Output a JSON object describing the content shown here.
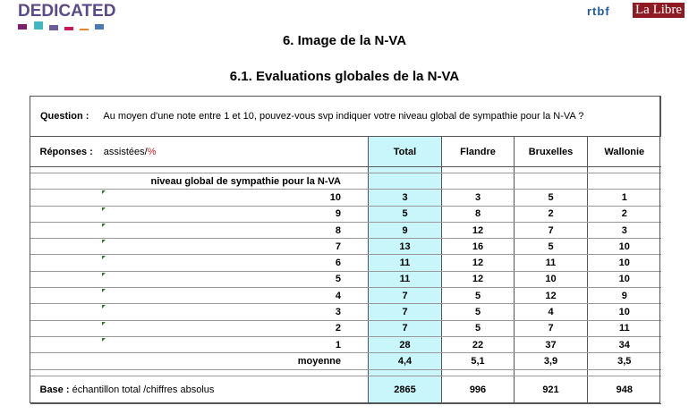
{
  "header": {
    "brand": "DEDICATED",
    "logo_rtbf": "rtbf",
    "logo_lalibre": "La Libre",
    "brand_colors": [
      "#7b1f6e",
      "#3fb8c0",
      "#6a5a9a",
      "#c8185a",
      "#e8842a",
      "#4a7ab8"
    ]
  },
  "title": "6. Image de la N-VA",
  "subtitle": "6.1. Evaluations globales de la N-VA",
  "question": {
    "label": "Question :",
    "text": "Au moyen d'une note entre 1 et 10, pouvez-vous svp indiquer votre niveau global de sympathie pour la N-VA ?"
  },
  "responses": {
    "label": "Réponses :",
    "text": "assistées/",
    "pct": "%"
  },
  "columns": [
    "Total",
    "Flandre",
    "Bruxelles",
    "Wallonie"
  ],
  "row_header": "niveau global de sympathie pour la N-VA",
  "rows": [
    {
      "label": "10",
      "values": [
        "3",
        "3",
        "5",
        "1"
      ]
    },
    {
      "label": "9",
      "values": [
        "5",
        "8",
        "2",
        "2"
      ]
    },
    {
      "label": "8",
      "values": [
        "9",
        "12",
        "7",
        "3"
      ]
    },
    {
      "label": "7",
      "values": [
        "13",
        "16",
        "5",
        "10"
      ]
    },
    {
      "label": "6",
      "values": [
        "11",
        "12",
        "11",
        "10"
      ]
    },
    {
      "label": "5",
      "values": [
        "11",
        "12",
        "10",
        "10"
      ]
    },
    {
      "label": "4",
      "values": [
        "7",
        "5",
        "12",
        "9"
      ]
    },
    {
      "label": "3",
      "values": [
        "7",
        "5",
        "4",
        "10"
      ]
    },
    {
      "label": "2",
      "values": [
        "7",
        "5",
        "7",
        "11"
      ]
    },
    {
      "label": "1",
      "values": [
        "28",
        "22",
        "37",
        "34"
      ]
    },
    {
      "label": "moyenne",
      "values": [
        "4,4",
        "5,1",
        "3,9",
        "3,5"
      ]
    }
  ],
  "base": {
    "label": "Base :",
    "text": "échantillon total /chiffres absolus",
    "values": [
      "2865",
      "996",
      "921",
      "948"
    ]
  }
}
